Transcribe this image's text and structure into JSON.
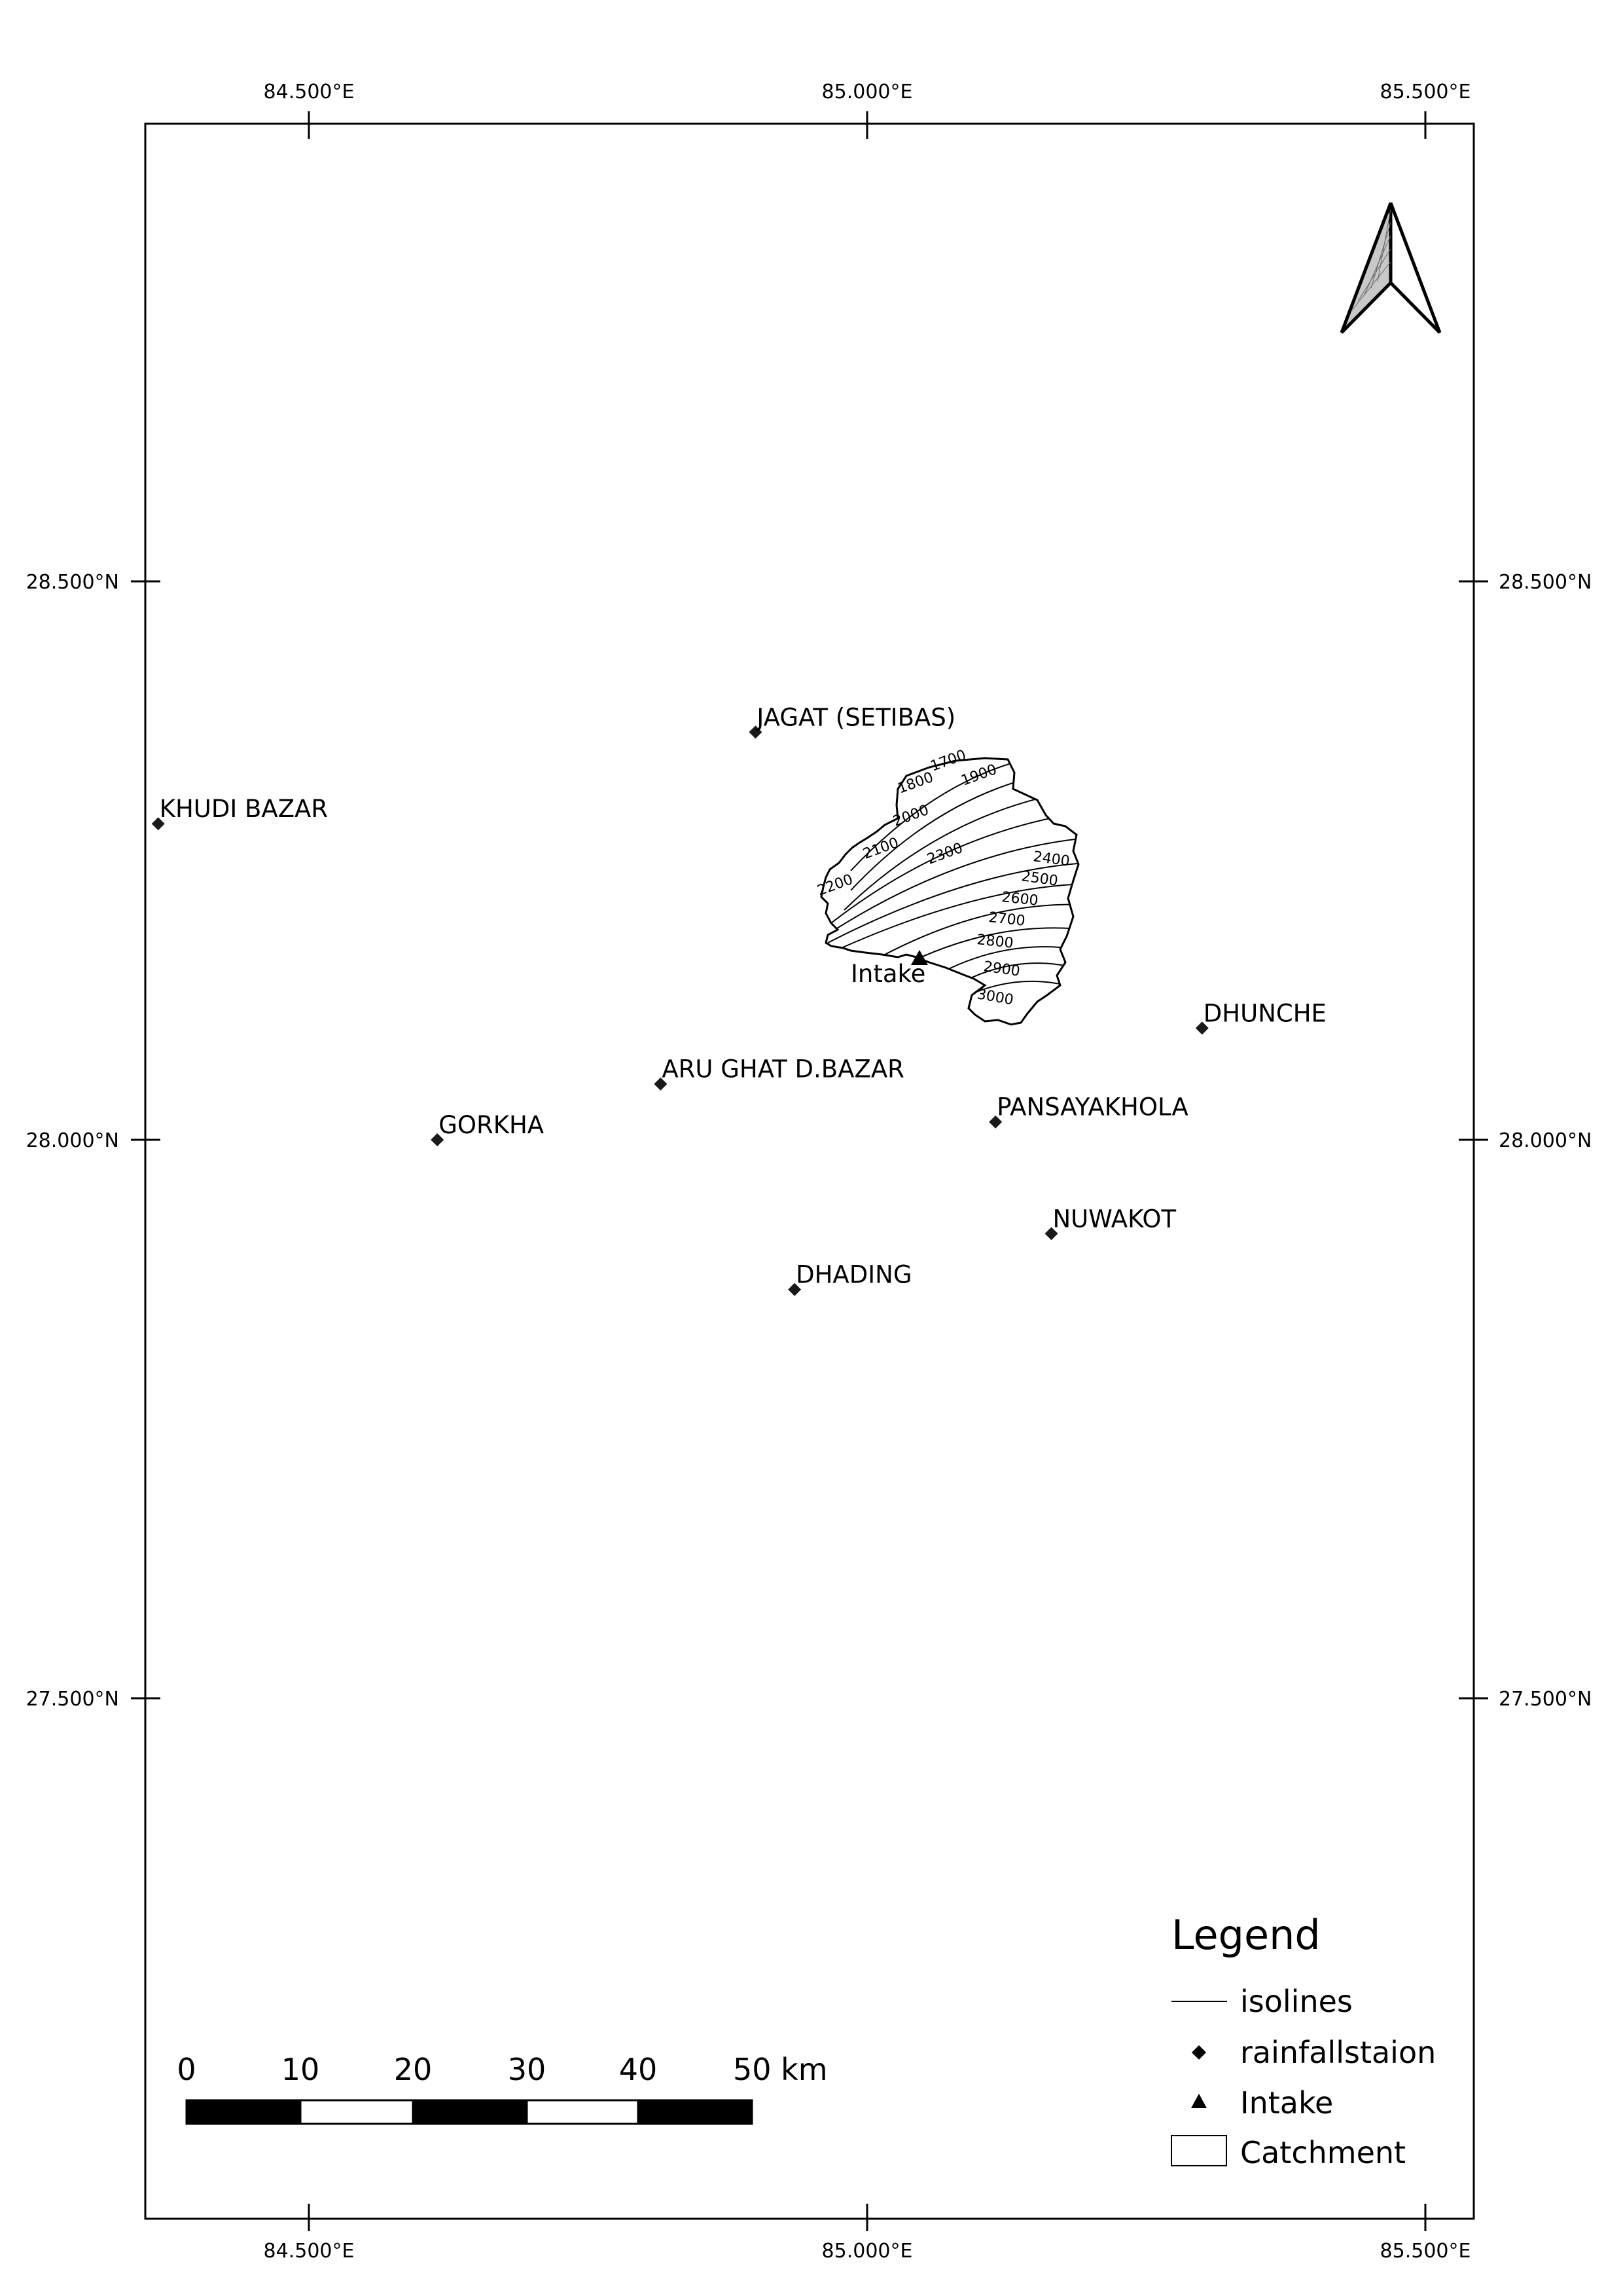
{
  "map": {
    "graticule": {
      "longitudes": [
        {
          "value": 84.5,
          "label": "84.500°E"
        },
        {
          "value": 85.0,
          "label": "85.000°E"
        },
        {
          "value": 85.5,
          "label": "85.500°E"
        }
      ],
      "latitudes": [
        {
          "value": 28.5,
          "label": "28.500°N"
        },
        {
          "value": 28.0,
          "label": "28.000°N"
        },
        {
          "value": 27.5,
          "label": "27.500°N"
        }
      ]
    },
    "stations": [
      {
        "name": "JAGAT (SETIBAS)",
        "lon": 84.9,
        "lat": 28.365
      },
      {
        "name": "KHUDI BAZAR",
        "lon": 84.365,
        "lat": 28.283
      },
      {
        "name": "DHUNCHE",
        "lon": 85.3,
        "lat": 28.1
      },
      {
        "name": "ARU GHAT D.BAZAR",
        "lon": 84.815,
        "lat": 28.05
      },
      {
        "name": "PANSAYAKHOLA",
        "lon": 85.115,
        "lat": 28.016
      },
      {
        "name": "GORKHA",
        "lon": 84.615,
        "lat": 28.0
      },
      {
        "name": "NUWAKOT",
        "lon": 85.165,
        "lat": 27.916
      },
      {
        "name": "DHADING",
        "lon": 84.935,
        "lat": 27.866
      }
    ],
    "intake": {
      "label": "Intake",
      "lon": 85.045,
      "lat": 28.165
    },
    "isolines": [
      "1700",
      "1800",
      "1900",
      "2000",
      "2100",
      "2200",
      "2300",
      "2400",
      "2500",
      "2600",
      "2700",
      "2800",
      "2900",
      "3000"
    ],
    "north_arrow": {
      "icon": "north-arrow-icon"
    }
  },
  "legend": {
    "title": "Legend",
    "items": [
      {
        "symbol": "line",
        "label": "isolines"
      },
      {
        "symbol": "diamond",
        "label": "rainfallstaion"
      },
      {
        "symbol": "triangle",
        "label": "Intake"
      },
      {
        "symbol": "rect",
        "label": "Catchment"
      }
    ]
  },
  "scale_bar": {
    "ticks": [
      "0",
      "10",
      "20",
      "30",
      "40",
      "50 km"
    ]
  }
}
